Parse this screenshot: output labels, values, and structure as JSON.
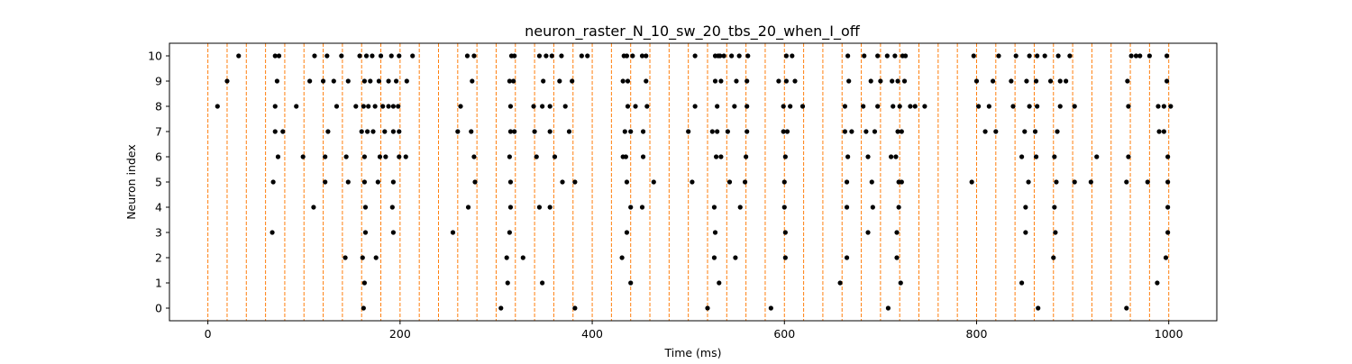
{
  "chart_data": {
    "type": "scatter",
    "title": "neuron_raster_N_10_sw_20_tbs_20_when_I_off",
    "xlabel": "Time (ms)",
    "ylabel": "Neuron index",
    "xlim": [
      -40,
      1050
    ],
    "ylim": [
      -0.5,
      10.5
    ],
    "xticks": [
      0,
      200,
      400,
      600,
      800,
      1000
    ],
    "yticks": [
      0,
      1,
      2,
      3,
      4,
      5,
      6,
      7,
      8,
      9,
      10
    ],
    "grid": false,
    "legend": "none",
    "vlines": {
      "style": "dashed",
      "color": "#ff7f0e",
      "x": [
        0,
        20,
        40,
        60,
        80,
        100,
        120,
        140,
        160,
        180,
        200,
        220,
        240,
        260,
        280,
        300,
        320,
        340,
        360,
        380,
        400,
        420,
        440,
        460,
        480,
        500,
        520,
        540,
        560,
        580,
        600,
        620,
        640,
        660,
        680,
        700,
        720,
        740,
        760,
        780,
        800,
        820,
        840,
        860,
        880,
        900,
        920,
        940,
        960,
        980,
        1000
      ]
    },
    "series": [
      {
        "marker_color": "#000000",
        "points": [
          {
            "neuron": 0,
            "times": [
              162,
              305,
              382,
              520,
              586,
              708,
              864,
              956
            ]
          },
          {
            "neuron": 1,
            "times": [
              163,
              312,
              348,
              440,
              532,
              658,
              721,
              847,
              988
            ]
          },
          {
            "neuron": 2,
            "times": [
              143,
              161,
              175,
              311,
              328,
              431,
              527,
              549,
              601,
              665,
              717,
              880,
              997
            ]
          },
          {
            "neuron": 3,
            "times": [
              67,
              164,
              193,
              255,
              314,
              436,
              528,
              601,
              687,
              717,
              851,
              882,
              999
            ]
          },
          {
            "neuron": 4,
            "times": [
              110,
              164,
              192,
              271,
              315,
              345,
              356,
              440,
              452,
              527,
              554,
              600,
              665,
              692,
              719,
              851,
              881,
              999
            ]
          },
          {
            "neuron": 5,
            "times": [
              68,
              122,
              146,
              163,
              177,
              193,
              278,
              315,
              369,
              382,
              436,
              464,
              504,
              543,
              559,
              600,
              665,
              691,
              719,
              722,
              795,
              854,
              883,
              902,
              919,
              956,
              978,
              999
            ]
          },
          {
            "neuron": 6,
            "times": [
              73,
              99,
              122,
              144,
              163,
              179,
              185,
              199,
              206,
              277,
              314,
              342,
              361,
              432,
              435,
              453,
              529,
              534,
              560,
              601,
              666,
              687,
              711,
              716,
              847,
              862,
              881,
              925,
              958,
              999
            ]
          },
          {
            "neuron": 7,
            "times": [
              70,
              78,
              125,
              160,
              166,
              172,
              184,
              193,
              199,
              260,
              274,
              315,
              319,
              340,
              356,
              376,
              434,
              440,
              453,
              500,
              525,
              530,
              541,
              561,
              599,
              603,
              663,
              670,
              685,
              694,
              718,
              722,
              809,
              820,
              850,
              861,
              884,
              990,
              995
            ]
          },
          {
            "neuron": 8,
            "times": [
              10,
              70,
              92,
              134,
              154,
              162,
              167,
              174,
              182,
              188,
              193,
              198,
              263,
              315,
              339,
              348,
              356,
              372,
              437,
              445,
              457,
              507,
              530,
              548,
              561,
              599,
              606,
              619,
              663,
              682,
              697,
              713,
              720,
              731,
              736,
              746,
              802,
              813,
              838,
              855,
              863,
              887,
              902,
              958,
              989,
              995,
              1002
            ]
          },
          {
            "neuron": 9,
            "times": [
              20,
              72,
              106,
              120,
              131,
              146,
              163,
              169,
              178,
              188,
              196,
              207,
              275,
              314,
              318,
              349,
              366,
              379,
              432,
              437,
              456,
              528,
              534,
              550,
              561,
              594,
              602,
              611,
              667,
              690,
              700,
              712,
              718,
              725,
              800,
              817,
              836,
              852,
              862,
              877,
              887,
              893,
              957,
              998
            ]
          },
          {
            "neuron": 10,
            "times": [
              32,
              70,
              74,
              111,
              124,
              139,
              158,
              165,
              171,
              180,
              191,
              199,
              213,
              270,
              277,
              316,
              319,
              345,
              352,
              358,
              368,
              389,
              395,
              433,
              436,
              442,
              452,
              456,
              507,
              528,
              531,
              533,
              537,
              545,
              553,
              562,
              602,
              608,
              666,
              683,
              697,
              707,
              715,
              723,
              726,
              797,
              823,
              841,
              855,
              863,
              871,
              885,
              897,
              961,
              966,
              970,
              980,
              998
            ]
          }
        ]
      }
    ]
  }
}
